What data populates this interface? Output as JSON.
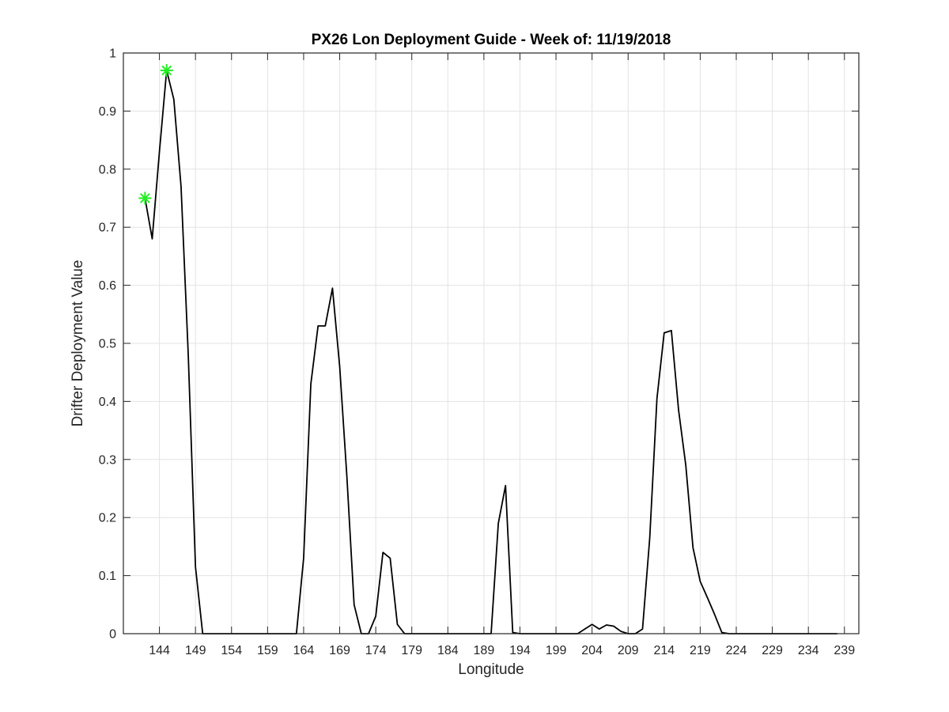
{
  "chart_data": {
    "type": "line",
    "title": "PX26 Lon Deployment Guide - Week of: 11/19/2018",
    "xlabel": "Longitude",
    "ylabel": "Drifter Deployment Value",
    "xlim": [
      139,
      241
    ],
    "ylim": [
      0,
      1
    ],
    "xticks": [
      144,
      149,
      154,
      159,
      164,
      169,
      174,
      179,
      184,
      189,
      194,
      199,
      204,
      209,
      214,
      219,
      224,
      229,
      234,
      239
    ],
    "yticks": [
      0,
      0.1,
      0.2,
      0.3,
      0.4,
      0.5,
      0.6,
      0.7,
      0.8,
      0.9,
      1
    ],
    "ytick_labels": [
      "0",
      "0.1",
      "0.2",
      "0.3",
      "0.4",
      "0.5",
      "0.6",
      "0.7",
      "0.8",
      "0.9",
      "1"
    ],
    "grid": true,
    "series": [
      {
        "color": "#000000",
        "x": [
          142,
          143,
          144,
          145,
          146,
          147,
          148,
          149,
          150,
          151,
          152,
          153,
          154,
          156,
          158,
          160,
          162,
          163,
          164,
          165,
          166,
          167,
          168,
          169,
          170,
          171,
          172,
          173,
          174,
          175,
          176,
          177,
          178,
          179,
          180,
          181,
          182,
          183,
          184,
          186,
          188,
          190,
          191,
          192,
          193,
          194,
          196,
          198,
          200,
          202,
          203,
          204,
          205,
          206,
          207,
          208,
          209,
          210,
          211,
          212,
          213,
          214,
          215,
          216,
          217,
          218,
          219,
          220,
          221,
          222,
          223,
          224,
          225,
          226,
          227,
          228,
          229,
          230,
          232,
          234,
          236,
          238
        ],
        "y": [
          0.75,
          0.68,
          0.83,
          0.97,
          0.92,
          0.77,
          0.48,
          0.115,
          0.0,
          0.0,
          0.0,
          0.0,
          0.0,
          0.0,
          0.0,
          0.0,
          0.0,
          0.0,
          0.13,
          0.43,
          0.53,
          0.53,
          0.595,
          0.46,
          0.27,
          0.05,
          0.0,
          0.0,
          0.03,
          0.14,
          0.13,
          0.016,
          0.0,
          0.0,
          0.0,
          0.0,
          0.0,
          0.0,
          0.0,
          0.0,
          0.0,
          0.0,
          0.19,
          0.255,
          0.002,
          0.0,
          0.0,
          0.0,
          0.0,
          0.0,
          0.008,
          0.016,
          0.008,
          0.015,
          0.013,
          0.004,
          0.0,
          0.0,
          0.008,
          0.165,
          0.405,
          0.518,
          0.522,
          0.385,
          0.29,
          0.148,
          0.09,
          0.062,
          0.033,
          0.002,
          0.0,
          0.0,
          0.0,
          0.0,
          0.0,
          0.0,
          0.0,
          0.0,
          0.0,
          0.0,
          0.0,
          0.0
        ]
      },
      {
        "marker": "asterisk",
        "color": "#22ee22",
        "x": [
          142,
          145
        ],
        "y": [
          0.75,
          0.97
        ]
      }
    ]
  }
}
